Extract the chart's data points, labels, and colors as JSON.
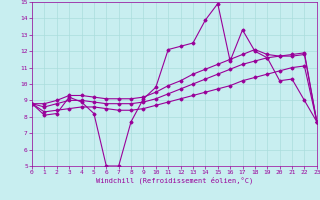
{
  "xlabel": "Windchill (Refroidissement éolien,°C)",
  "xlim": [
    0,
    23
  ],
  "ylim": [
    5,
    15
  ],
  "xticks": [
    0,
    1,
    2,
    3,
    4,
    5,
    6,
    7,
    8,
    9,
    10,
    11,
    12,
    13,
    14,
    15,
    16,
    17,
    18,
    19,
    20,
    21,
    22,
    23
  ],
  "yticks": [
    5,
    6,
    7,
    8,
    9,
    10,
    11,
    12,
    13,
    14,
    15
  ],
  "bg_color": "#c8eef0",
  "line_color": "#990099",
  "grid_color": "#aadddd",
  "line1_x": [
    0,
    1,
    2,
    3,
    4,
    5,
    6,
    7,
    8,
    9,
    10,
    11,
    12,
    13,
    14,
    15,
    16,
    17,
    18,
    19,
    20,
    21,
    22,
    23
  ],
  "line1_y": [
    8.8,
    8.1,
    8.2,
    9.2,
    8.9,
    8.2,
    5.0,
    5.0,
    7.7,
    9.1,
    9.8,
    12.1,
    12.3,
    12.5,
    13.9,
    14.9,
    11.4,
    13.3,
    12.0,
    11.6,
    10.2,
    10.3,
    9.0,
    7.7
  ],
  "line2_x": [
    0,
    1,
    2,
    3,
    4,
    5,
    6,
    7,
    8,
    9,
    10,
    11,
    12,
    13,
    14,
    15,
    16,
    17,
    18,
    19,
    20,
    21,
    22,
    23
  ],
  "line2_y": [
    8.8,
    8.3,
    8.4,
    8.5,
    8.6,
    8.6,
    8.5,
    8.4,
    8.4,
    8.5,
    8.7,
    8.9,
    9.1,
    9.3,
    9.5,
    9.7,
    9.9,
    10.2,
    10.4,
    10.6,
    10.8,
    11.0,
    11.1,
    7.7
  ],
  "line3_x": [
    0,
    1,
    2,
    3,
    4,
    5,
    6,
    7,
    8,
    9,
    10,
    11,
    12,
    13,
    14,
    15,
    16,
    17,
    18,
    19,
    20,
    21,
    22,
    23
  ],
  "line3_y": [
    8.8,
    8.6,
    8.8,
    9.0,
    9.0,
    8.9,
    8.8,
    8.8,
    8.8,
    8.9,
    9.1,
    9.4,
    9.7,
    10.0,
    10.3,
    10.6,
    10.9,
    11.2,
    11.4,
    11.6,
    11.7,
    11.7,
    11.8,
    7.7
  ],
  "line4_x": [
    0,
    1,
    2,
    3,
    4,
    5,
    6,
    7,
    8,
    9,
    10,
    11,
    12,
    13,
    14,
    15,
    16,
    17,
    18,
    19,
    20,
    21,
    22,
    23
  ],
  "line4_y": [
    8.8,
    8.8,
    9.0,
    9.3,
    9.3,
    9.2,
    9.1,
    9.1,
    9.1,
    9.2,
    9.5,
    9.9,
    10.2,
    10.6,
    10.9,
    11.2,
    11.5,
    11.8,
    12.1,
    11.8,
    11.7,
    11.8,
    11.9,
    7.7
  ]
}
